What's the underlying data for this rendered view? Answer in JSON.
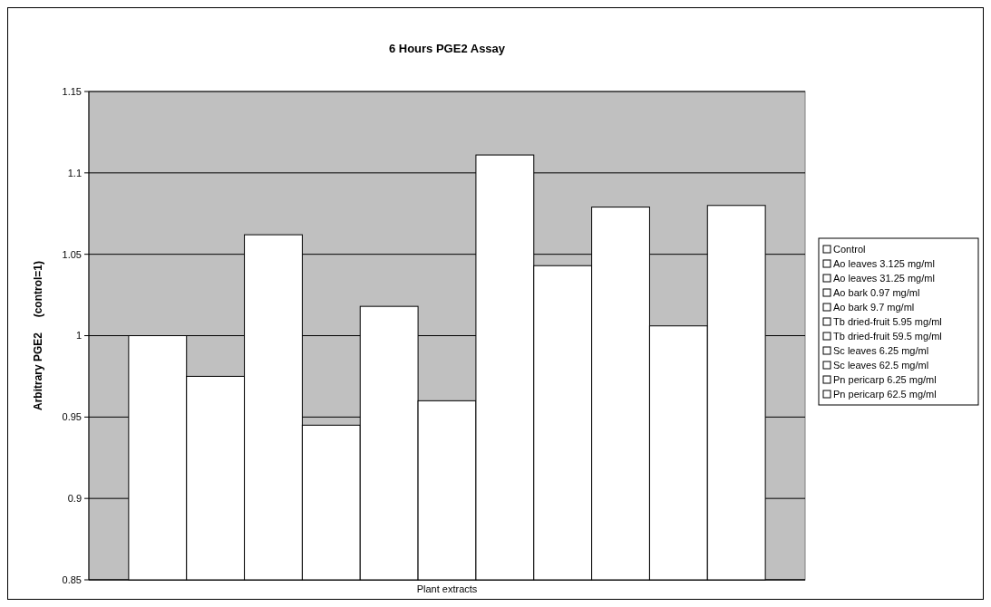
{
  "chart_data": {
    "type": "bar",
    "title": "6 Hours PGE2 Assay",
    "xlabel": "Plant extracts",
    "ylabel": "Arbitrary PGE2     (control=1)",
    "categories": [
      null
    ],
    "series": [
      {
        "name": "Control",
        "color": "#ffffff",
        "values": [
          1.0
        ]
      },
      {
        "name": "Ao leaves 3.125 mg/ml",
        "color": "#ffffff",
        "values": [
          0.975
        ]
      },
      {
        "name": "Ao leaves 31.25 mg/ml",
        "color": "#ffffff",
        "values": [
          1.062
        ]
      },
      {
        "name": "Ao bark 0.97 mg/ml",
        "color": "#ffffff",
        "values": [
          0.945
        ]
      },
      {
        "name": "Ao bark 9.7 mg/ml",
        "color": "#ffffff",
        "values": [
          1.018
        ]
      },
      {
        "name": "Tb dried-fruit 5.95 mg/ml",
        "color": "#ffffff",
        "values": [
          0.96
        ]
      },
      {
        "name": "Tb dried-fruit 59.5 mg/ml",
        "color": "#ffffff",
        "values": [
          1.111
        ]
      },
      {
        "name": "Sc leaves 6.25 mg/ml",
        "color": "#ffffff",
        "values": [
          1.043
        ]
      },
      {
        "name": "Sc leaves 62.5 mg/ml",
        "color": "#ffffff",
        "values": [
          1.079
        ]
      },
      {
        "name": "Pn pericarp 6.25 mg/ml",
        "color": "#ffffff",
        "values": [
          1.006
        ]
      },
      {
        "name": "Pn pericarp 62.5 mg/ml",
        "color": "#ffffff",
        "values": [
          1.08
        ]
      }
    ],
    "ylim": [
      0.85,
      1.15
    ],
    "yticks": [
      0.85,
      0.9,
      0.95,
      1,
      1.05,
      1.1,
      1.15
    ],
    "grid": "y",
    "legend": "right"
  }
}
